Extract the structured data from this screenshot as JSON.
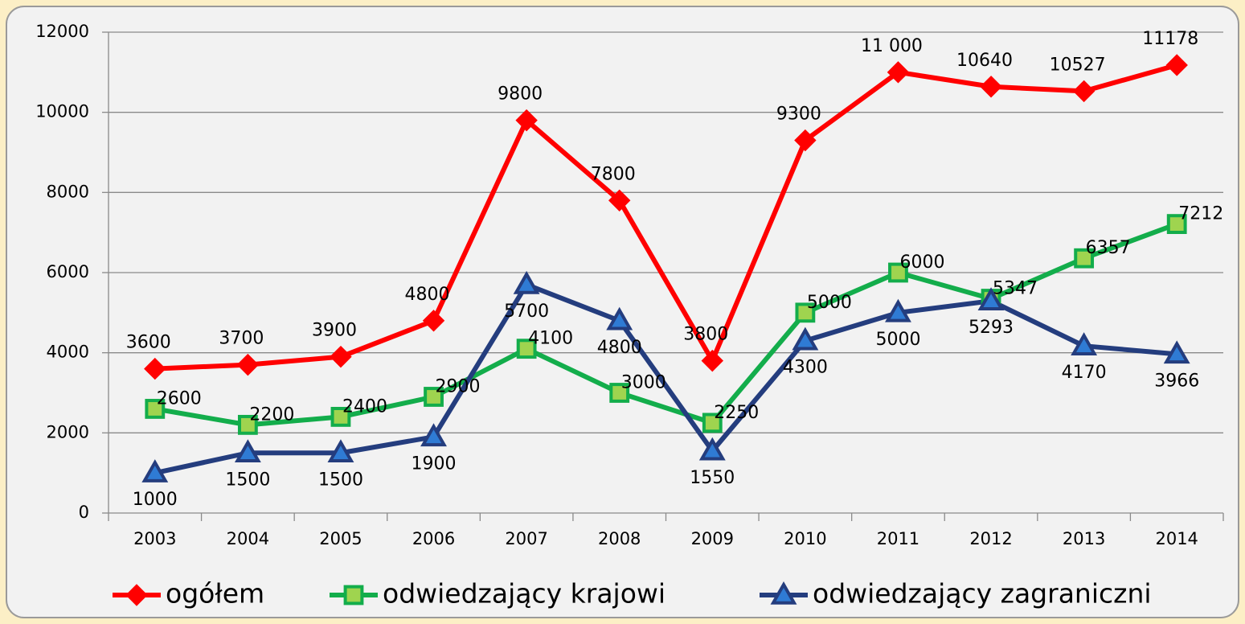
{
  "chart_data": {
    "type": "line",
    "categories": [
      "2003",
      "2004",
      "2005",
      "2006",
      "2007",
      "2008",
      "2009",
      "2010",
      "2011",
      "2012",
      "2013",
      "2014"
    ],
    "series": [
      {
        "name": "ogółem",
        "color": "#ff0000",
        "marker": "diamond",
        "marker_color": "#ff0000",
        "values": [
          3600,
          3700,
          3900,
          4800,
          9800,
          7800,
          3800,
          9300,
          11000,
          10640,
          10527,
          11178
        ],
        "value_labels": [
          "3600",
          "3700",
          "3900",
          "4800",
          "9800",
          "7800",
          "3800",
          "9300",
          "11 000",
          "10640",
          "10527",
          "11178"
        ]
      },
      {
        "name": "odwiedzający krajowi",
        "color": "#13ad4b",
        "marker": "square",
        "marker_color": "#9fd44f",
        "values": [
          2600,
          2200,
          2400,
          2900,
          4100,
          3000,
          2250,
          5000,
          6000,
          5347,
          6357,
          7212
        ]
      },
      {
        "name": "odwiedzający zagraniczni",
        "color": "#243d7e",
        "marker": "triangle",
        "marker_color": "#2f7bd4",
        "values": [
          1000,
          1500,
          1500,
          1900,
          5700,
          4800,
          1550,
          4300,
          5000,
          5293,
          4170,
          3966
        ]
      }
    ],
    "ylim": [
      0,
      12000
    ],
    "yticks": [
      0,
      2000,
      4000,
      6000,
      8000,
      10000,
      12000
    ],
    "grid": true,
    "legend": "bottom"
  }
}
